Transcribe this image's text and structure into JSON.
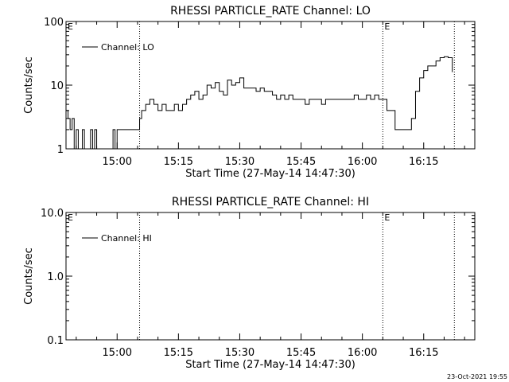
{
  "timestamp": "23-Oct-2021 19:55",
  "chart_data": [
    {
      "type": "line",
      "title": "RHESSI PARTICLE_RATE Channel: LO",
      "xlabel": "Start Time (27-May-14 14:47:30)",
      "ylabel": "Counts/sec",
      "yscale": "log",
      "ylim": [
        1,
        100
      ],
      "xlim": [
        "14:47:30",
        "16:27:30"
      ],
      "x_ticks": [
        "15:00",
        "15:15",
        "15:30",
        "15:45",
        "16:00",
        "16:15"
      ],
      "y_ticks": [
        "1",
        "10",
        "100"
      ],
      "legend": "Channel: LO",
      "legend_position": "top-left",
      "markers": [
        {
          "time": "15:05:30",
          "label": ""
        },
        {
          "time": "16:05:00",
          "label": "E"
        },
        {
          "time": "16:22:30",
          "label": ""
        }
      ],
      "corner_label": "E",
      "series": [
        {
          "name": "Channel: LO",
          "x": [
            "14:47:30",
            "14:48:00",
            "14:48:30",
            "14:49:00",
            "14:49:30",
            "14:50:00",
            "14:50:30",
            "14:51:00",
            "14:51:30",
            "14:52:00",
            "14:52:30",
            "14:53:00",
            "14:53:30",
            "14:54:00",
            "14:54:30",
            "14:55:00",
            "14:55:30",
            "14:56:00",
            "14:56:30",
            "14:57:00",
            "14:57:30",
            "14:58:00",
            "14:58:30",
            "14:59:00",
            "14:59:30",
            "15:00:00",
            "15:01:00",
            "15:02:00",
            "15:03:00",
            "15:04:00",
            "15:05:00",
            "15:05:30",
            "15:06:00",
            "15:07:00",
            "15:08:00",
            "15:09:00",
            "15:10:00",
            "15:11:00",
            "15:12:00",
            "15:13:00",
            "15:14:00",
            "15:15:00",
            "15:16:00",
            "15:17:00",
            "15:18:00",
            "15:19:00",
            "15:20:00",
            "15:21:00",
            "15:22:00",
            "15:23:00",
            "15:24:00",
            "15:25:00",
            "15:26:00",
            "15:27:00",
            "15:28:00",
            "15:29:00",
            "15:30:00",
            "15:31:00",
            "15:32:00",
            "15:33:00",
            "15:34:00",
            "15:35:00",
            "15:36:00",
            "15:37:00",
            "15:38:00",
            "15:39:00",
            "15:40:00",
            "15:41:00",
            "15:42:00",
            "15:43:00",
            "15:44:00",
            "15:45:00",
            "15:46:00",
            "15:47:00",
            "15:48:00",
            "15:49:00",
            "15:50:00",
            "15:51:00",
            "15:52:00",
            "15:53:00",
            "15:54:00",
            "15:55:00",
            "15:56:00",
            "15:57:00",
            "15:58:00",
            "15:59:00",
            "16:00:00",
            "16:01:00",
            "16:02:00",
            "16:03:00",
            "16:04:00",
            "16:05:00",
            "16:06:00",
            "16:07:00",
            "16:08:00",
            "16:09:00",
            "16:10:00",
            "16:11:00",
            "16:12:00",
            "16:13:00",
            "16:14:00",
            "16:15:00",
            "16:16:00",
            "16:17:00",
            "16:18:00",
            "16:19:00",
            "16:20:00",
            "16:21:00",
            "16:22:00"
          ],
          "values": [
            4,
            3,
            2,
            3,
            1,
            2,
            1,
            1,
            2,
            1,
            1,
            1,
            2,
            1,
            2,
            1,
            1,
            1,
            1,
            1,
            1,
            1,
            1,
            2,
            1,
            2,
            2,
            2,
            2,
            2,
            2,
            3,
            4,
            5,
            6,
            5,
            4,
            5,
            4,
            4,
            5,
            4,
            5,
            6,
            7,
            8,
            6,
            7,
            10,
            9,
            11,
            8,
            7,
            12,
            10,
            11,
            13,
            9,
            9,
            9,
            8,
            9,
            8,
            8,
            7,
            6,
            7,
            6,
            7,
            6,
            6,
            6,
            5,
            6,
            6,
            6,
            5,
            6,
            6,
            6,
            6,
            6,
            6,
            6,
            7,
            6,
            6,
            7,
            6,
            7,
            6,
            6,
            4,
            4,
            2,
            2,
            2,
            2,
            3,
            8,
            13,
            17,
            20,
            20,
            24,
            27,
            28,
            27,
            16
          ]
        }
      ]
    },
    {
      "type": "line",
      "title": "RHESSI PARTICLE_RATE Channel: HI",
      "xlabel": "Start Time (27-May-14 14:47:30)",
      "ylabel": "Counts/sec",
      "yscale": "log",
      "ylim": [
        0.1,
        10.0
      ],
      "xlim": [
        "14:47:30",
        "16:27:30"
      ],
      "x_ticks": [
        "15:00",
        "15:15",
        "15:30",
        "15:45",
        "16:00",
        "16:15"
      ],
      "y_ticks": [
        "0.1",
        "1.0",
        "10.0"
      ],
      "legend": "Channel: HI",
      "legend_position": "top-left",
      "markers": [
        {
          "time": "15:05:30",
          "label": ""
        },
        {
          "time": "16:05:00",
          "label": "E"
        },
        {
          "time": "16:22:30",
          "label": ""
        }
      ],
      "corner_label": "E",
      "series": [
        {
          "name": "Channel: HI",
          "x": [],
          "values": []
        }
      ]
    }
  ]
}
